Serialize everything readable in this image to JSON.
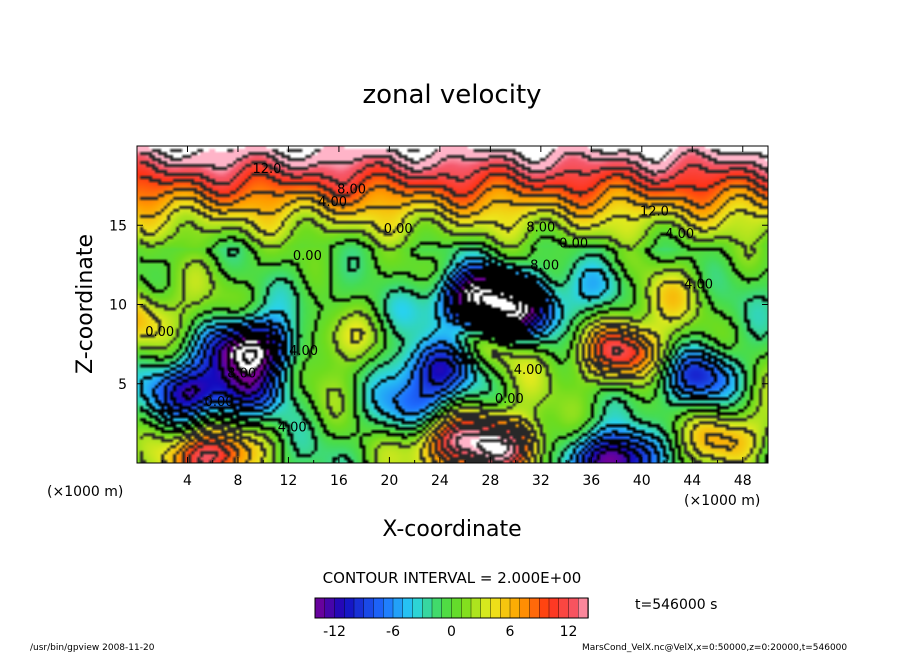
{
  "chart_data": {
    "type": "heatmap",
    "title": "zonal velocity",
    "xlabel": "X-coordinate",
    "ylabel": "Z-coordinate",
    "x_unit": "(×1000 m)",
    "x_unit_right": "(×1000 m)",
    "xlim": [
      0,
      50
    ],
    "ylim": [
      0,
      20
    ],
    "x_ticks": [
      "4",
      "8",
      "12",
      "16",
      "20",
      "24",
      "28",
      "32",
      "36",
      "40",
      "44",
      "48"
    ],
    "y_ticks": [
      "5",
      "10",
      "15"
    ],
    "contour_interval_text": "CONTOUR INTERVAL = 2.000E+00",
    "time_text": "t=546000 s",
    "colorbar": {
      "ticks": [
        "-12",
        "-6",
        "0",
        "6",
        "12"
      ],
      "range": [
        -14,
        14
      ]
    },
    "contour_labels": [
      {
        "text": "12.0",
        "x": 10.3,
        "z": 18.3
      },
      {
        "text": "8.00",
        "x": 17.0,
        "z": 17.0
      },
      {
        "text": "4.00",
        "x": 15.5,
        "z": 16.2
      },
      {
        "text": "12.0",
        "x": 41.0,
        "z": 15.6
      },
      {
        "text": "0.00",
        "x": 20.7,
        "z": 14.5
      },
      {
        "text": "8.00",
        "x": 32.0,
        "z": 14.6
      },
      {
        "text": "4.00",
        "x": 43.0,
        "z": 14.2
      },
      {
        "text": "0.00",
        "x": 34.6,
        "z": 13.6
      },
      {
        "text": "0.00",
        "x": 13.5,
        "z": 12.8
      },
      {
        "text": "8.00",
        "x": 32.3,
        "z": 12.2
      },
      {
        "text": "4.00",
        "x": 44.5,
        "z": 11.0
      },
      {
        "text": "0.00",
        "x": 1.8,
        "z": 8.0
      },
      {
        "text": "4.00",
        "x": 13.2,
        "z": 6.8
      },
      {
        "text": "8.00",
        "x": 8.3,
        "z": 5.4
      },
      {
        "text": "4.00",
        "x": 31.0,
        "z": 5.6
      },
      {
        "text": "0.00",
        "x": 29.5,
        "z": 3.8
      },
      {
        "text": "0.00",
        "x": 6.5,
        "z": 3.6
      },
      {
        "text": "4.00",
        "x": 12.3,
        "z": 2.0
      }
    ],
    "features": [
      {
        "x": 4,
        "z": 4.5,
        "u": -10
      },
      {
        "x": 9,
        "z": 7.2,
        "u": -17
      },
      {
        "x": 9,
        "z": 4.5,
        "u": -8
      },
      {
        "x": 27,
        "z": 10.5,
        "u": -16
      },
      {
        "x": 30,
        "z": 9.5,
        "u": -12
      },
      {
        "x": 24,
        "z": 6.0,
        "u": -9
      },
      {
        "x": 22,
        "z": 3.5,
        "u": -6
      },
      {
        "x": 38,
        "z": 0.2,
        "u": -16
      },
      {
        "x": 45,
        "z": 5.5,
        "u": -9
      },
      {
        "x": 37,
        "z": 11,
        "u": -4
      },
      {
        "x": 16,
        "z": 8.0,
        "u": 4
      },
      {
        "x": 21,
        "z": 9.5,
        "u": -3
      },
      {
        "x": 38.5,
        "z": 7.0,
        "u": 12
      },
      {
        "x": 25,
        "z": 1.5,
        "u": 10
      },
      {
        "x": 29,
        "z": 1.0,
        "u": 14
      },
      {
        "x": 6,
        "z": 0.5,
        "u": 12
      },
      {
        "x": 47,
        "z": 1.5,
        "u": 7
      },
      {
        "x": 0,
        "z": 9.0,
        "u": 5
      },
      {
        "x": 42,
        "z": 10.5,
        "u": 3
      },
      {
        "x": 28,
        "z": 7.5,
        "u": 4
      }
    ]
  },
  "footer": {
    "left": "/usr/bin/gpview  2008-11-20",
    "right": "MarsCond_VelX.nc@VelX,x=0:50000,z=0:20000,t=546000"
  }
}
